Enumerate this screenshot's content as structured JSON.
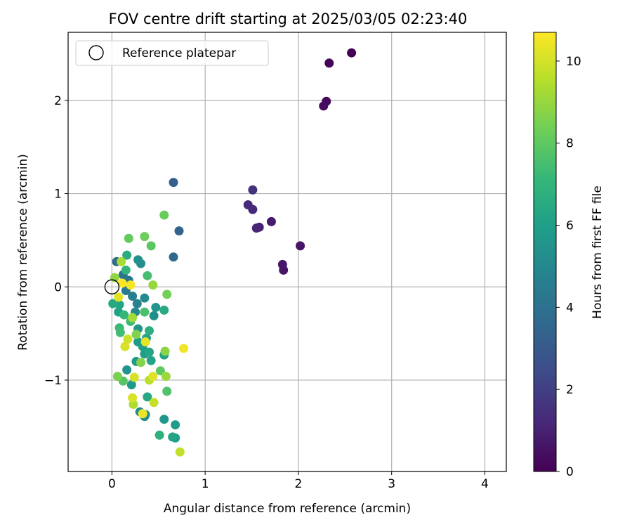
{
  "chart_data": {
    "type": "scatter",
    "title": "FOV centre drift starting at 2025/03/05 02:23:40",
    "xlabel": "Angular distance from reference (arcmin)",
    "ylabel": "Rotation from reference (arcmin)",
    "xlim": [
      -0.47,
      4.23
    ],
    "ylim": [
      -1.98,
      2.73
    ],
    "xticks": [
      0,
      1,
      2,
      3,
      4
    ],
    "yticks": [
      -1,
      0,
      1,
      2
    ],
    "grid": true,
    "legend": {
      "position": "top-left",
      "entries": [
        "Reference platepar"
      ]
    },
    "reference_point": {
      "x": 0,
      "y": 0,
      "label": "Reference platepar"
    },
    "colorbar": {
      "label": "Hours from first FF file",
      "colormap": "viridis",
      "range": [
        0,
        10.7
      ],
      "ticks": [
        0,
        2,
        4,
        6,
        8,
        10
      ]
    },
    "points": [
      {
        "x": 2.57,
        "y": 2.51,
        "hours": 0.0
      },
      {
        "x": 2.33,
        "y": 2.4,
        "hours": 0.1
      },
      {
        "x": 2.3,
        "y": 1.99,
        "hours": 0.2
      },
      {
        "x": 2.27,
        "y": 1.94,
        "hours": 0.3
      },
      {
        "x": 2.02,
        "y": 0.44,
        "hours": 0.6
      },
      {
        "x": 1.84,
        "y": 0.18,
        "hours": 0.6
      },
      {
        "x": 1.83,
        "y": 0.24,
        "hours": 0.7
      },
      {
        "x": 1.71,
        "y": 0.7,
        "hours": 0.8
      },
      {
        "x": 1.58,
        "y": 0.64,
        "hours": 1.0
      },
      {
        "x": 1.55,
        "y": 0.63,
        "hours": 1.1
      },
      {
        "x": 1.51,
        "y": 0.83,
        "hours": 1.2
      },
      {
        "x": 1.46,
        "y": 0.88,
        "hours": 1.3
      },
      {
        "x": 1.51,
        "y": 1.04,
        "hours": 1.5
      },
      {
        "x": 0.66,
        "y": 1.12,
        "hours": 3.2
      },
      {
        "x": 0.72,
        "y": 0.6,
        "hours": 3.4
      },
      {
        "x": 0.66,
        "y": 0.32,
        "hours": 3.6
      },
      {
        "x": 0.05,
        "y": 0.27,
        "hours": 3.8
      },
      {
        "x": 0.12,
        "y": 0.13,
        "hours": 4.0
      },
      {
        "x": 0.18,
        "y": 0.07,
        "hours": 4.3
      },
      {
        "x": 0.22,
        "y": -0.1,
        "hours": 4.6
      },
      {
        "x": 0.15,
        "y": -0.04,
        "hours": 4.5
      },
      {
        "x": 0.27,
        "y": -0.18,
        "hours": 4.8
      },
      {
        "x": 0.25,
        "y": -0.27,
        "hours": 5.0
      },
      {
        "x": 0.35,
        "y": -0.12,
        "hours": 5.1
      },
      {
        "x": 0.31,
        "y": 0.25,
        "hours": 5.2
      },
      {
        "x": 0.28,
        "y": 0.29,
        "hours": 5.4
      },
      {
        "x": 0.45,
        "y": -0.31,
        "hours": 5.3
      },
      {
        "x": 0.47,
        "y": -0.22,
        "hours": 5.5
      },
      {
        "x": 0.28,
        "y": -0.45,
        "hours": 5.6
      },
      {
        "x": 0.28,
        "y": -0.59,
        "hours": 5.8
      },
      {
        "x": 0.33,
        "y": -0.64,
        "hours": 5.9
      },
      {
        "x": 0.35,
        "y": -0.72,
        "hours": 6.0
      },
      {
        "x": 0.37,
        "y": -0.55,
        "hours": 6.1
      },
      {
        "x": 0.26,
        "y": -0.8,
        "hours": 5.7
      },
      {
        "x": 0.42,
        "y": -0.79,
        "hours": 6.2
      },
      {
        "x": 0.4,
        "y": -0.7,
        "hours": 6.3
      },
      {
        "x": 0.16,
        "y": -0.89,
        "hours": 5.5
      },
      {
        "x": 0.21,
        "y": -1.05,
        "hours": 5.8
      },
      {
        "x": 0.3,
        "y": -1.34,
        "hours": 5.2
      },
      {
        "x": 0.35,
        "y": -1.39,
        "hours": 5.0
      },
      {
        "x": 0.36,
        "y": -1.37,
        "hours": 5.3
      },
      {
        "x": 0.56,
        "y": -1.42,
        "hours": 5.6
      },
      {
        "x": 0.68,
        "y": -1.48,
        "hours": 5.9
      },
      {
        "x": 0.65,
        "y": -1.61,
        "hours": 6.2
      },
      {
        "x": 0.68,
        "y": -1.62,
        "hours": 6.0
      },
      {
        "x": 0.51,
        "y": -1.59,
        "hours": 6.8
      },
      {
        "x": 0.38,
        "y": -1.18,
        "hours": 6.4
      },
      {
        "x": 0.56,
        "y": -0.73,
        "hours": 6.2
      },
      {
        "x": 0.56,
        "y": -0.25,
        "hours": 6.5
      },
      {
        "x": 0.4,
        "y": -0.47,
        "hours": 6.7
      },
      {
        "x": 0.16,
        "y": 0.34,
        "hours": 6.6
      },
      {
        "x": 0.08,
        "y": -0.19,
        "hours": 6.3
      },
      {
        "x": 0.07,
        "y": -0.27,
        "hours": 6.1
      },
      {
        "x": 0.01,
        "y": -0.18,
        "hours": 6.4
      },
      {
        "x": 0.15,
        "y": 0.18,
        "hours": 7.0
      },
      {
        "x": 0.08,
        "y": -0.44,
        "hours": 7.2
      },
      {
        "x": 0.09,
        "y": -0.49,
        "hours": 7.4
      },
      {
        "x": 0.13,
        "y": -0.3,
        "hours": 7.1
      },
      {
        "x": 0.2,
        "y": -0.37,
        "hours": 7.3
      },
      {
        "x": 0.38,
        "y": 0.12,
        "hours": 7.5
      },
      {
        "x": 0.35,
        "y": -0.27,
        "hours": 7.6
      },
      {
        "x": 0.42,
        "y": 0.44,
        "hours": 7.9
      },
      {
        "x": 0.18,
        "y": 0.52,
        "hours": 8.1
      },
      {
        "x": 0.35,
        "y": 0.54,
        "hours": 8.3
      },
      {
        "x": 0.56,
        "y": 0.77,
        "hours": 8.2
      },
      {
        "x": 0.59,
        "y": -0.08,
        "hours": 8.4
      },
      {
        "x": 0.52,
        "y": -0.9,
        "hours": 8.0
      },
      {
        "x": 0.59,
        "y": -1.12,
        "hours": 7.7
      },
      {
        "x": 0.06,
        "y": -0.96,
        "hours": 8.5
      },
      {
        "x": 0.12,
        "y": -1.01,
        "hours": 7.8
      },
      {
        "x": 0.26,
        "y": -0.51,
        "hours": 8.6
      },
      {
        "x": 0.31,
        "y": -0.81,
        "hours": 8.7
      },
      {
        "x": 0.57,
        "y": -0.69,
        "hours": 8.8
      },
      {
        "x": 0.58,
        "y": -0.96,
        "hours": 9.1
      },
      {
        "x": 0.44,
        "y": 0.02,
        "hours": 9.0
      },
      {
        "x": 0.03,
        "y": 0.1,
        "hours": 8.9
      },
      {
        "x": 0.22,
        "y": -0.33,
        "hours": 9.2
      },
      {
        "x": 0.1,
        "y": 0.27,
        "hours": 9.3
      },
      {
        "x": 0.23,
        "y": -1.26,
        "hours": 9.4
      },
      {
        "x": 0.4,
        "y": -1.0,
        "hours": 9.6
      },
      {
        "x": 0.45,
        "y": -1.24,
        "hours": 9.8
      },
      {
        "x": 0.17,
        "y": -0.56,
        "hours": 9.9
      },
      {
        "x": 0.14,
        "y": -0.64,
        "hours": 10.1
      },
      {
        "x": 0.24,
        "y": -0.97,
        "hours": 10.0
      },
      {
        "x": 0.36,
        "y": -0.59,
        "hours": 10.3
      },
      {
        "x": 0.44,
        "y": -0.96,
        "hours": 10.2
      },
      {
        "x": 0.77,
        "y": -0.66,
        "hours": 10.5
      },
      {
        "x": 0.73,
        "y": -1.77,
        "hours": 9.7
      },
      {
        "x": 0.33,
        "y": -1.36,
        "hours": 10.4
      },
      {
        "x": 0.2,
        "y": 0.02,
        "hours": 10.6
      },
      {
        "x": 0.11,
        "y": 0.04,
        "hours": 10.7
      },
      {
        "x": 0.07,
        "y": -0.11,
        "hours": 10.2
      },
      {
        "x": 0.22,
        "y": -1.19,
        "hours": 10.1
      }
    ]
  }
}
